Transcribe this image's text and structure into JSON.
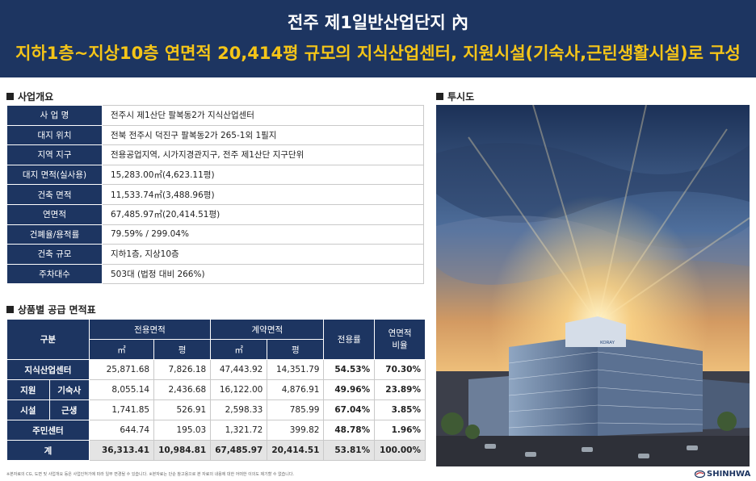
{
  "header": {
    "title": "전주 제1일반산업단지 內",
    "subtitle": "지하1층~지상10층 연면적 20,414평 규모의 지식산업센터, 지원시설(기숙사,근린생활시설)로 구성"
  },
  "overview": {
    "section_title": "사업개요",
    "rows": [
      {
        "label": "사 업 명",
        "value": "전주시 제1산단 팔복동2가 지식산업센터"
      },
      {
        "label": "대지 위치",
        "value": "전북 전주시 덕진구 팔복동2가 265-1외 1필지"
      },
      {
        "label": "지역 지구",
        "value": "전용공업지역, 시가지경관지구, 전주 제1산단 지구단위"
      },
      {
        "label": "대지 면적(실사용)",
        "value": "15,283.00㎡(4,623.11평)"
      },
      {
        "label": "건축 면적",
        "value": "11,533.74㎡(3,488.96평)"
      },
      {
        "label": "연면적",
        "value": "67,485.97㎡(20,414.51평)"
      },
      {
        "label": "건폐율/용적률",
        "value": "79.59% / 299.04%"
      },
      {
        "label": "건축 규모",
        "value": "지하1층, 지상10층"
      },
      {
        "label": "주차대수",
        "value": "503대 (법정 대비 266%)"
      }
    ]
  },
  "supply": {
    "section_title": "상품별 공급 면적표",
    "headers": {
      "division": "구분",
      "exclusive_area": "전용면적",
      "contract_area": "계약면적",
      "sqm": "㎡",
      "pyeong": "평",
      "exclusive_ratio": "전용률",
      "floor_area_ratio": "연면적\n비율"
    },
    "group_label_top": "지원",
    "group_label_bottom": "시설",
    "rows": [
      {
        "label": "지식산업센터",
        "ex_m2": "25,871.68",
        "ex_py": "7,826.18",
        "ct_m2": "47,443.92",
        "ct_py": "14,351.79",
        "ratio": "54.53%",
        "share": "70.30%"
      },
      {
        "label": "기숙사",
        "ex_m2": "8,055.14",
        "ex_py": "2,436.68",
        "ct_m2": "16,122.00",
        "ct_py": "4,876.91",
        "ratio": "49.96%",
        "share": "23.89%"
      },
      {
        "label": "근생",
        "ex_m2": "1,741.85",
        "ex_py": "526.91",
        "ct_m2": "2,598.33",
        "ct_py": "785.99",
        "ratio": "67.04%",
        "share": "3.85%"
      },
      {
        "label": "주민센터",
        "ex_m2": "644.74",
        "ex_py": "195.03",
        "ct_m2": "1,321.72",
        "ct_py": "399.82",
        "ratio": "48.78%",
        "share": "1.96%"
      },
      {
        "label": "계",
        "ex_m2": "36,313.41",
        "ex_py": "10,984.81",
        "ct_m2": "67,485.97",
        "ct_py": "20,414.51",
        "ratio": "53.81%",
        "share": "100.00%"
      }
    ]
  },
  "rendering": {
    "section_title": "투시도",
    "building_sign": "KORAY"
  },
  "footer": {
    "note": "※본자료의 CG, 도면 및 사업개요 등은 사업인허가에 따라 일부 변경될 수 있습니다. ※본자료는 단순 참고용으로 본 자료의 내용에 대한 어떠한 이의도 제기할 수 없습니다.",
    "brand": "SHINHWA"
  },
  "colors": {
    "navy": "#1d3561",
    "yellow": "#f5c518",
    "highlight_bold": "#222222"
  }
}
